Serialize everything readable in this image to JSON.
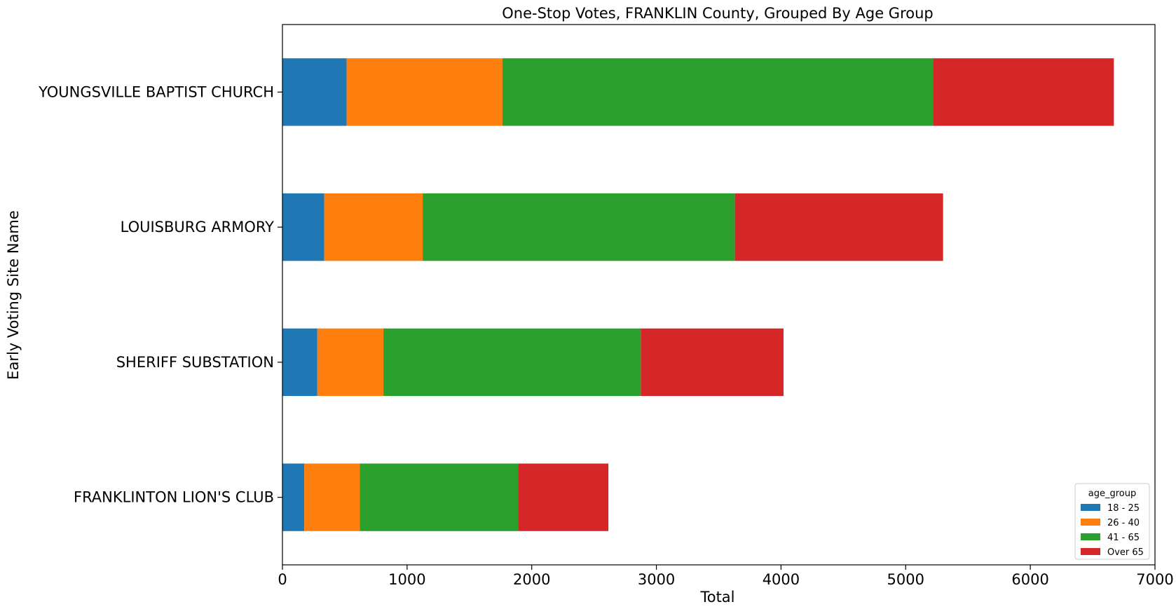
{
  "chart_data": {
    "type": "bar",
    "orientation": "horizontal",
    "stacked": true,
    "title": "One-Stop Votes, FRANKLIN County, Grouped By Age Group",
    "xlabel": "Total",
    "ylabel": "Early Voting Site Name",
    "xlim": [
      0,
      7000
    ],
    "xticks": [
      0,
      1000,
      2000,
      3000,
      4000,
      5000,
      6000,
      7000
    ],
    "categories": [
      "FRANKLINTON LION'S CLUB",
      "SHERIFF SUBSTATION",
      "LOUISBURG ARMORY",
      "YOUNGSVILLE BAPTIST CHURCH"
    ],
    "series": [
      {
        "name": "18 - 25",
        "color": "#1f77b4",
        "values": [
          175,
          280,
          335,
          515
        ]
      },
      {
        "name": "26 - 40",
        "color": "#ff7f0e",
        "values": [
          445,
          530,
          790,
          1250
        ]
      },
      {
        "name": "41 - 65",
        "color": "#2ca02c",
        "values": [
          1270,
          2065,
          2505,
          3455
        ]
      },
      {
        "name": "Over 65",
        "color": "#d62728",
        "values": [
          725,
          1145,
          1670,
          1450
        ]
      }
    ],
    "legend": {
      "title": "age_group",
      "placement": "lower right"
    },
    "grid": false
  }
}
